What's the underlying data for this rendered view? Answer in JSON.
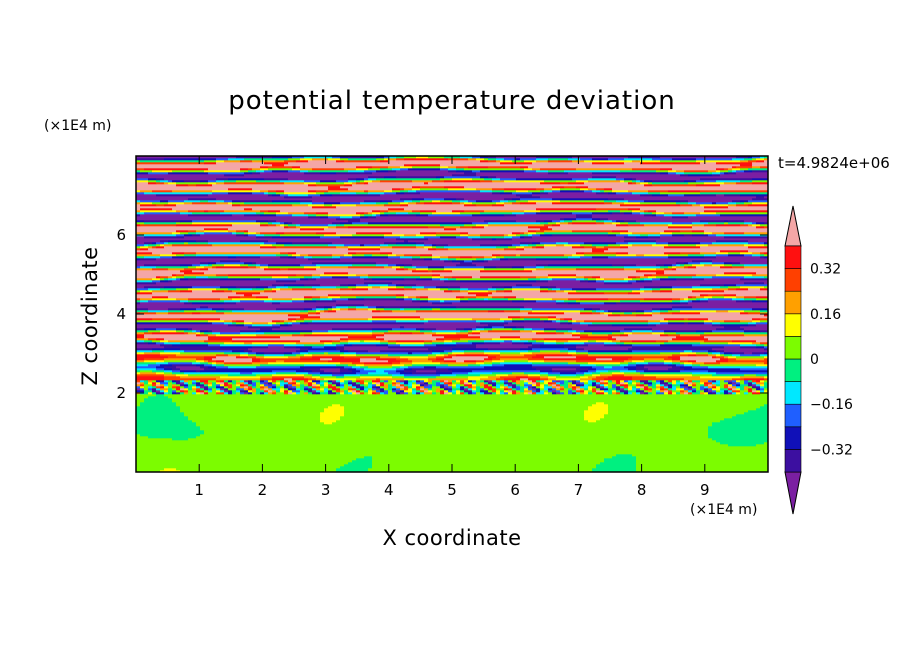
{
  "chart_data": {
    "type": "heatmap",
    "title": "potential temperature deviation",
    "xlabel": "X coordinate",
    "ylabel": "Z coordinate",
    "x_unit_label": "(×1E4 m)",
    "y_unit_label": "(×1E4 m)",
    "time_label": "t=4.9824e+06",
    "xlim": [
      0,
      10
    ],
    "ylim": [
      0,
      8
    ],
    "x_ticks": [
      1,
      2,
      3,
      4,
      5,
      6,
      7,
      8,
      9
    ],
    "y_ticks": [
      2,
      4,
      6
    ],
    "colorbar": {
      "levels": [
        -0.4,
        -0.32,
        -0.24,
        -0.16,
        -0.08,
        0,
        0.08,
        0.16,
        0.24,
        0.32,
        0.4
      ],
      "tick_labels": [
        "0.32",
        "0.16",
        "0",
        "−0.16",
        "−0.32"
      ],
      "tick_values": [
        0.32,
        0.16,
        0,
        -0.16,
        -0.32
      ],
      "colors": [
        "#7b1fa2",
        "#3c0fa0",
        "#1010b8",
        "#1f5fff",
        "#00e8ff",
        "#00f080",
        "#7cfc00",
        "#ffff00",
        "#ffa000",
        "#ff4000",
        "#ff1010",
        "#f4a6a6"
      ],
      "extend": "both"
    },
    "region_summary": {
      "lower_layer_z": [
        0,
        2
      ],
      "lower_layer_values": [
        0,
        0.08
      ],
      "upper_layer_z": [
        2,
        8
      ],
      "upper_layer_values": [
        -0.4,
        0.4
      ]
    }
  }
}
